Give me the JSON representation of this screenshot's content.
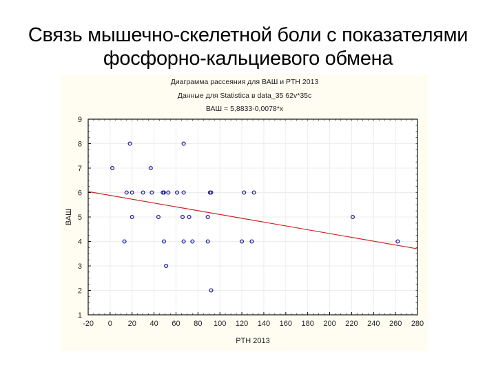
{
  "slide": {
    "title_line1": "Связь мышечно-скелетной боли с показателями",
    "title_line2": "фосфорно-кальциевого обмена"
  },
  "chart_data": {
    "type": "scatter",
    "title": "Диаграмма рассеяния для ВАШ и PTH 2013",
    "subtitle": "Данные для Statistica в data_35 62v*35c",
    "equation": "ВАШ = 5,8833-0,0078*x",
    "xlabel": "PTH 2013",
    "ylabel": "ВАШ",
    "xlim": [
      -20,
      280
    ],
    "ylim": [
      1,
      9
    ],
    "xticks": [
      -20,
      0,
      20,
      40,
      60,
      80,
      100,
      120,
      140,
      160,
      180,
      200,
      220,
      240,
      260,
      280
    ],
    "yticks": [
      1,
      2,
      3,
      4,
      5,
      6,
      7,
      8,
      9
    ],
    "grid": true,
    "legend": null,
    "points": [
      {
        "x": 18,
        "y": 8
      },
      {
        "x": 67,
        "y": 8
      },
      {
        "x": 2,
        "y": 7
      },
      {
        "x": 37,
        "y": 7
      },
      {
        "x": 15,
        "y": 6
      },
      {
        "x": 20,
        "y": 6
      },
      {
        "x": 30,
        "y": 6
      },
      {
        "x": 38,
        "y": 6
      },
      {
        "x": 48,
        "y": 6
      },
      {
        "x": 49,
        "y": 6
      },
      {
        "x": 53,
        "y": 6
      },
      {
        "x": 61,
        "y": 6
      },
      {
        "x": 67,
        "y": 6
      },
      {
        "x": 91,
        "y": 6
      },
      {
        "x": 92,
        "y": 6
      },
      {
        "x": 122,
        "y": 6
      },
      {
        "x": 131,
        "y": 6
      },
      {
        "x": 20,
        "y": 5
      },
      {
        "x": 44,
        "y": 5
      },
      {
        "x": 66,
        "y": 5
      },
      {
        "x": 72,
        "y": 5
      },
      {
        "x": 89,
        "y": 5
      },
      {
        "x": 221,
        "y": 5
      },
      {
        "x": 13,
        "y": 4
      },
      {
        "x": 49,
        "y": 4
      },
      {
        "x": 67,
        "y": 4
      },
      {
        "x": 75,
        "y": 4
      },
      {
        "x": 89,
        "y": 4
      },
      {
        "x": 120,
        "y": 4
      },
      {
        "x": 129,
        "y": 4
      },
      {
        "x": 262,
        "y": 4
      },
      {
        "x": 51,
        "y": 3
      },
      {
        "x": 92,
        "y": 2
      }
    ],
    "regression": {
      "intercept": 5.8833,
      "slope": -0.0078
    },
    "colors": {
      "points": "#1f1f9a",
      "regression_line": "#cc2020",
      "panel_background": "#fffdf2",
      "plot_background": "#ffffff"
    }
  }
}
